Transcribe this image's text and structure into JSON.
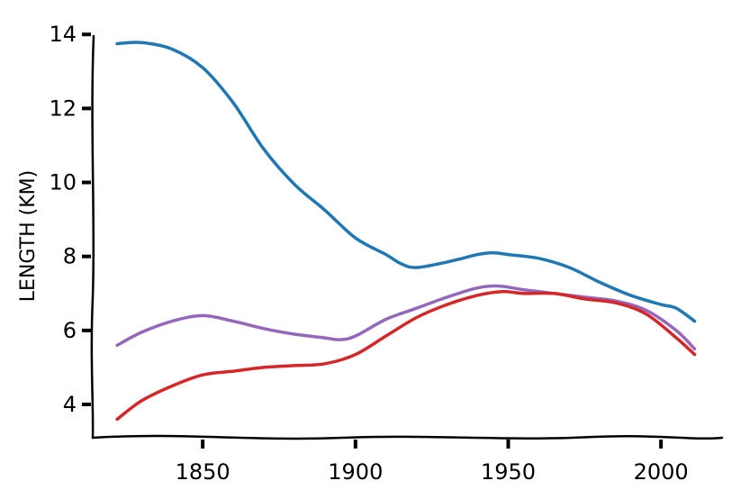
{
  "chart_data": {
    "type": "line",
    "title": "",
    "xlabel": "",
    "ylabel": "LENGTH (KM)",
    "xlim": [
      1814,
      2020
    ],
    "ylim": [
      3.1,
      14.2
    ],
    "x_ticks": [
      1850,
      1900,
      1950,
      2000
    ],
    "x_tick_labels": [
      "1850",
      "1900",
      "1950",
      "2000"
    ],
    "y_ticks": [
      4,
      6,
      8,
      10,
      12,
      14
    ],
    "y_tick_labels": [
      "4",
      "6",
      "8",
      "10",
      "12",
      "14"
    ],
    "grid": false,
    "legend": "none",
    "series": [
      {
        "color": "#1f77b4",
        "x": [
          1822,
          1830,
          1840,
          1850,
          1860,
          1870,
          1880,
          1890,
          1900,
          1910,
          1915,
          1920,
          1930,
          1940,
          1945,
          1950,
          1960,
          1970,
          1980,
          1990,
          2000,
          2005,
          2011
        ],
        "y": [
          13.75,
          13.78,
          13.6,
          13.1,
          12.15,
          10.9,
          9.95,
          9.25,
          8.5,
          8.05,
          7.8,
          7.7,
          7.85,
          8.05,
          8.1,
          8.05,
          7.95,
          7.7,
          7.3,
          6.95,
          6.7,
          6.6,
          6.25
        ]
      },
      {
        "color": "#9467bd",
        "x": [
          1822,
          1830,
          1840,
          1850,
          1860,
          1870,
          1880,
          1890,
          1895,
          1900,
          1910,
          1920,
          1930,
          1940,
          1947,
          1955,
          1965,
          1975,
          1985,
          1995,
          2005,
          2011
        ],
        "y": [
          5.6,
          5.95,
          6.25,
          6.4,
          6.25,
          6.05,
          5.9,
          5.8,
          5.75,
          5.85,
          6.3,
          6.6,
          6.9,
          7.15,
          7.2,
          7.1,
          7.0,
          6.9,
          6.8,
          6.55,
          6.0,
          5.5
        ]
      },
      {
        "color": "#d62728",
        "x": [
          1822,
          1830,
          1840,
          1850,
          1860,
          1870,
          1880,
          1890,
          1900,
          1910,
          1920,
          1930,
          1940,
          1948,
          1955,
          1965,
          1975,
          1985,
          1995,
          2005,
          2011
        ],
        "y": [
          3.6,
          4.1,
          4.5,
          4.8,
          4.9,
          5.0,
          5.05,
          5.1,
          5.35,
          5.85,
          6.35,
          6.7,
          6.95,
          7.05,
          7.0,
          7.0,
          6.85,
          6.75,
          6.45,
          5.8,
          5.35
        ]
      }
    ]
  }
}
